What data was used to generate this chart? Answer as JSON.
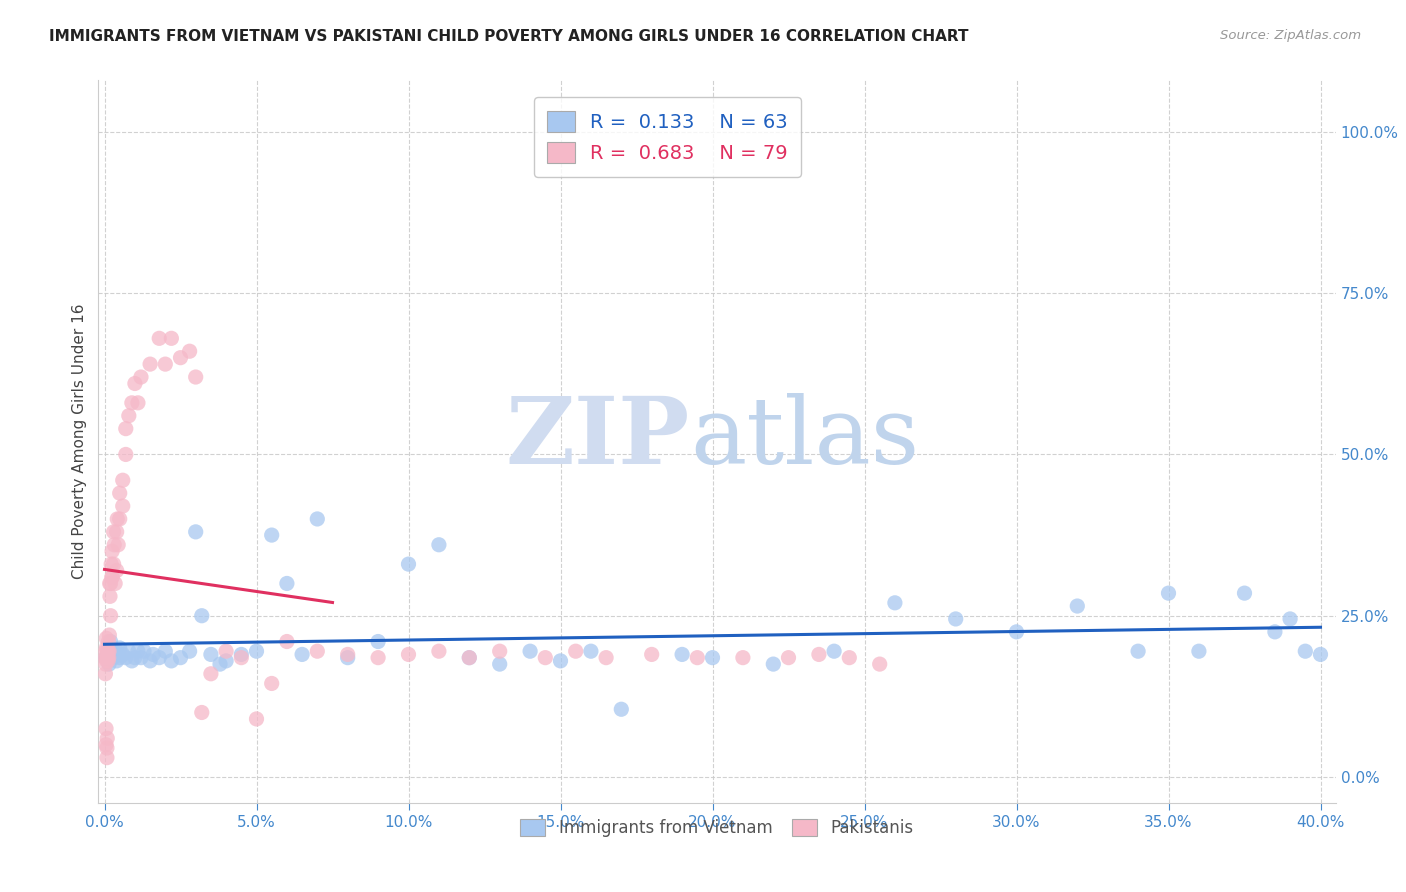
{
  "title": "IMMIGRANTS FROM VIETNAM VS PAKISTANI CHILD POVERTY AMONG GIRLS UNDER 16 CORRELATION CHART",
  "source": "Source: ZipAtlas.com",
  "ylabel": "Child Poverty Among Girls Under 16",
  "x_tick_labels": [
    "0.0%",
    "5.0%",
    "10.0%",
    "15.0%",
    "20.0%",
    "25.0%",
    "30.0%",
    "35.0%",
    "40.0%"
  ],
  "x_tick_vals": [
    0.0,
    0.05,
    0.1,
    0.15,
    0.2,
    0.25,
    0.3,
    0.35,
    0.4
  ],
  "y_tick_labels": [
    "0.0%",
    "25.0%",
    "50.0%",
    "75.0%",
    "100.0%"
  ],
  "y_tick_vals": [
    0.0,
    0.25,
    0.5,
    0.75,
    1.0
  ],
  "xlim": [
    -0.002,
    0.405
  ],
  "ylim": [
    -0.04,
    1.08
  ],
  "legend_R_blue": "0.133",
  "legend_N_blue": "63",
  "legend_R_pink": "0.683",
  "legend_N_pink": "79",
  "legend_label_blue": "Immigrants from Vietnam",
  "legend_label_pink": "Pakistanis",
  "blue_color": "#A8C8F0",
  "pink_color": "#F5B8C8",
  "blue_line_color": "#2060C0",
  "pink_line_color": "#E03060",
  "blue_x": [
    0.0005,
    0.001,
    0.0015,
    0.002,
    0.002,
    0.003,
    0.003,
    0.004,
    0.004,
    0.005,
    0.005,
    0.006,
    0.007,
    0.008,
    0.009,
    0.01,
    0.011,
    0.012,
    0.013,
    0.015,
    0.016,
    0.018,
    0.02,
    0.022,
    0.025,
    0.028,
    0.03,
    0.032,
    0.035,
    0.038,
    0.04,
    0.045,
    0.05,
    0.055,
    0.06,
    0.065,
    0.07,
    0.08,
    0.09,
    0.1,
    0.11,
    0.12,
    0.13,
    0.14,
    0.15,
    0.16,
    0.17,
    0.19,
    0.2,
    0.22,
    0.24,
    0.26,
    0.28,
    0.3,
    0.32,
    0.34,
    0.35,
    0.36,
    0.375,
    0.385,
    0.39,
    0.395,
    0.4
  ],
  "blue_y": [
    0.185,
    0.19,
    0.175,
    0.195,
    0.21,
    0.185,
    0.195,
    0.18,
    0.195,
    0.185,
    0.2,
    0.19,
    0.185,
    0.195,
    0.18,
    0.185,
    0.195,
    0.185,
    0.195,
    0.18,
    0.19,
    0.185,
    0.195,
    0.18,
    0.185,
    0.195,
    0.38,
    0.25,
    0.19,
    0.175,
    0.18,
    0.19,
    0.195,
    0.375,
    0.3,
    0.19,
    0.4,
    0.185,
    0.21,
    0.33,
    0.36,
    0.185,
    0.175,
    0.195,
    0.18,
    0.195,
    0.105,
    0.19,
    0.185,
    0.175,
    0.195,
    0.27,
    0.245,
    0.225,
    0.265,
    0.195,
    0.285,
    0.195,
    0.285,
    0.225,
    0.245,
    0.195,
    0.19
  ],
  "pink_x": [
    0.0002,
    0.0003,
    0.0004,
    0.0004,
    0.0005,
    0.0005,
    0.0006,
    0.0006,
    0.0007,
    0.0007,
    0.0008,
    0.0008,
    0.0009,
    0.001,
    0.001,
    0.0012,
    0.0012,
    0.0013,
    0.0014,
    0.0015,
    0.0016,
    0.0017,
    0.0018,
    0.002,
    0.002,
    0.0022,
    0.0024,
    0.0025,
    0.0026,
    0.003,
    0.003,
    0.0032,
    0.0035,
    0.004,
    0.004,
    0.0042,
    0.0045,
    0.005,
    0.005,
    0.006,
    0.006,
    0.007,
    0.007,
    0.008,
    0.009,
    0.01,
    0.011,
    0.012,
    0.015,
    0.018,
    0.02,
    0.022,
    0.025,
    0.028,
    0.03,
    0.032,
    0.035,
    0.04,
    0.045,
    0.05,
    0.055,
    0.06,
    0.07,
    0.08,
    0.09,
    0.1,
    0.11,
    0.12,
    0.13,
    0.145,
    0.155,
    0.165,
    0.18,
    0.195,
    0.21,
    0.225,
    0.235,
    0.245,
    0.255
  ],
  "pink_y": [
    0.185,
    0.16,
    0.175,
    0.195,
    0.05,
    0.075,
    0.2,
    0.215,
    0.185,
    0.18,
    0.03,
    0.045,
    0.06,
    0.185,
    0.195,
    0.18,
    0.195,
    0.21,
    0.185,
    0.195,
    0.22,
    0.3,
    0.28,
    0.25,
    0.3,
    0.33,
    0.31,
    0.35,
    0.31,
    0.38,
    0.33,
    0.36,
    0.3,
    0.32,
    0.38,
    0.4,
    0.36,
    0.4,
    0.44,
    0.42,
    0.46,
    0.5,
    0.54,
    0.56,
    0.58,
    0.61,
    0.58,
    0.62,
    0.64,
    0.68,
    0.64,
    0.68,
    0.65,
    0.66,
    0.62,
    0.1,
    0.16,
    0.195,
    0.185,
    0.09,
    0.145,
    0.21,
    0.195,
    0.19,
    0.185,
    0.19,
    0.195,
    0.185,
    0.195,
    0.185,
    0.195,
    0.185,
    0.19,
    0.185,
    0.185,
    0.185,
    0.19,
    0.185,
    0.175
  ]
}
